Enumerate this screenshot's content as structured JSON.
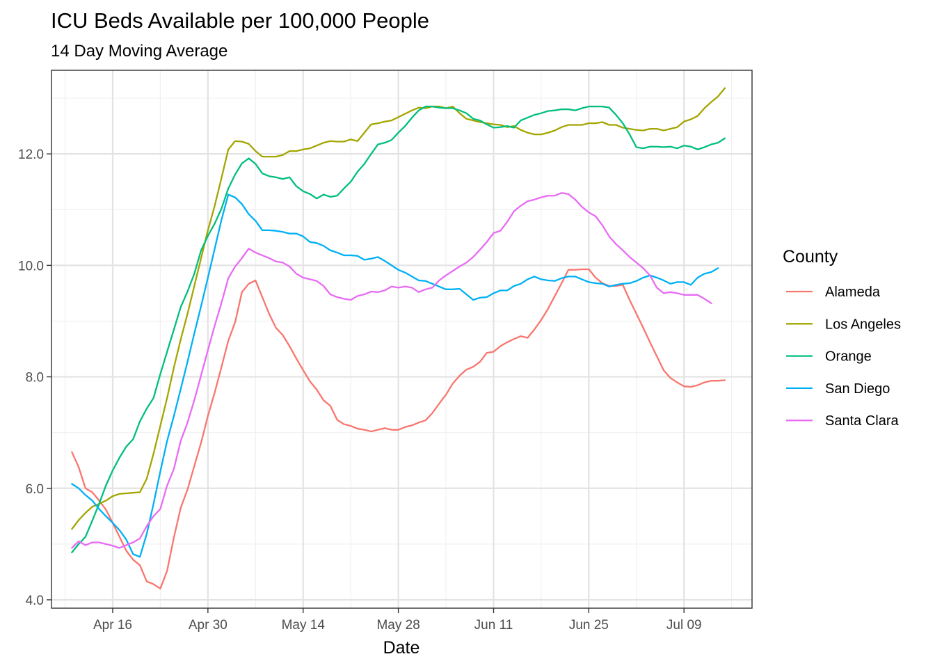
{
  "chart_data": {
    "type": "line",
    "title": "ICU Beds Available per 100,000 People",
    "subtitle": "14 Day Moving Average",
    "xlabel": "Date",
    "ylabel": "",
    "x_start": "2020-04-10",
    "x_step_days": 1,
    "xlim": [
      "2020-04-07",
      "2020-07-19"
    ],
    "x_ticks": [
      {
        "date": "2020-04-16",
        "label": "Apr 16"
      },
      {
        "date": "2020-04-30",
        "label": "Apr 30"
      },
      {
        "date": "2020-05-14",
        "label": "May 14"
      },
      {
        "date": "2020-05-28",
        "label": "May 28"
      },
      {
        "date": "2020-06-11",
        "label": "Jun 11"
      },
      {
        "date": "2020-06-25",
        "label": "Jun 25"
      },
      {
        "date": "2020-07-09",
        "label": "Jul 09"
      }
    ],
    "ylim": [
      3.85,
      13.5
    ],
    "y_ticks": [
      {
        "value": 4,
        "label": "4.0"
      },
      {
        "value": 6,
        "label": "6.0"
      },
      {
        "value": 8,
        "label": "8.0"
      },
      {
        "value": 10,
        "label": "10.0"
      },
      {
        "value": 12,
        "label": "12.0"
      }
    ],
    "grid": true,
    "legend_title": "County",
    "legend_position": "right",
    "series": [
      {
        "name": "Alameda",
        "color": "#F8766D",
        "values": [
          6.65,
          6.38,
          6.0,
          5.93,
          5.78,
          5.62,
          5.38,
          5.13,
          4.88,
          4.72,
          4.62,
          4.33,
          4.28,
          4.2,
          4.52,
          5.12,
          5.65,
          5.98,
          6.4,
          6.82,
          7.3,
          7.72,
          8.18,
          8.65,
          8.98,
          9.52,
          9.67,
          9.73,
          9.43,
          9.13,
          8.88,
          8.75,
          8.55,
          8.33,
          8.12,
          7.92,
          7.77,
          7.58,
          7.48,
          7.23,
          7.15,
          7.12,
          7.07,
          7.05,
          7.02,
          7.05,
          7.08,
          7.05,
          7.05,
          7.1,
          7.13,
          7.18,
          7.22,
          7.35,
          7.52,
          7.68,
          7.88,
          8.02,
          8.13,
          8.18,
          8.27,
          8.43,
          8.45,
          8.55,
          8.62,
          8.68,
          8.73,
          8.7,
          8.85,
          9.02,
          9.22,
          9.45,
          9.68,
          9.92,
          9.92,
          9.93,
          9.93,
          9.78,
          9.68,
          9.63,
          9.63,
          9.65,
          9.38,
          9.13,
          8.88,
          8.62,
          8.37,
          8.12,
          7.98,
          7.9,
          7.83,
          7.82,
          7.85,
          7.9,
          7.93,
          7.93,
          7.94
        ]
      },
      {
        "name": "Los Angeles",
        "color": "#A3A500",
        "values": [
          5.27,
          5.43,
          5.56,
          5.67,
          5.72,
          5.78,
          5.86,
          5.9,
          5.91,
          5.92,
          5.93,
          6.17,
          6.62,
          7.12,
          7.62,
          8.17,
          8.67,
          9.13,
          9.63,
          10.13,
          10.63,
          11.07,
          11.57,
          12.08,
          12.23,
          12.22,
          12.18,
          12.05,
          11.95,
          11.95,
          11.95,
          11.98,
          12.05,
          12.05,
          12.08,
          12.1,
          12.15,
          12.2,
          12.23,
          12.22,
          12.22,
          12.26,
          12.23,
          12.38,
          12.53,
          12.55,
          12.58,
          12.6,
          12.66,
          12.72,
          12.78,
          12.83,
          12.82,
          12.85,
          12.85,
          12.82,
          12.85,
          12.73,
          12.63,
          12.6,
          12.57,
          12.55,
          12.53,
          12.52,
          12.48,
          12.5,
          12.43,
          12.38,
          12.35,
          12.35,
          12.38,
          12.42,
          12.48,
          12.52,
          12.52,
          12.52,
          12.55,
          12.55,
          12.57,
          12.52,
          12.52,
          12.47,
          12.45,
          12.43,
          12.42,
          12.45,
          12.45,
          12.42,
          12.45,
          12.48,
          12.58,
          12.62,
          12.68,
          12.82,
          12.93,
          13.03,
          13.18
        ]
      },
      {
        "name": "Orange",
        "color": "#00BF7D",
        "values": [
          4.85,
          5.0,
          5.13,
          5.42,
          5.72,
          6.05,
          6.32,
          6.55,
          6.75,
          6.88,
          7.2,
          7.43,
          7.62,
          8.05,
          8.45,
          8.85,
          9.25,
          9.53,
          9.85,
          10.27,
          10.53,
          10.75,
          11.02,
          11.38,
          11.63,
          11.83,
          11.92,
          11.82,
          11.65,
          11.6,
          11.58,
          11.55,
          11.58,
          11.42,
          11.33,
          11.28,
          11.2,
          11.27,
          11.23,
          11.25,
          11.38,
          11.5,
          11.68,
          11.82,
          12.0,
          12.17,
          12.2,
          12.25,
          12.38,
          12.5,
          12.65,
          12.78,
          12.85,
          12.85,
          12.83,
          12.82,
          12.82,
          12.78,
          12.73,
          12.63,
          12.6,
          12.53,
          12.47,
          12.48,
          12.5,
          12.47,
          12.6,
          12.65,
          12.7,
          12.73,
          12.77,
          12.78,
          12.8,
          12.8,
          12.78,
          12.82,
          12.85,
          12.85,
          12.85,
          12.83,
          12.7,
          12.55,
          12.35,
          12.12,
          12.1,
          12.13,
          12.13,
          12.12,
          12.13,
          12.1,
          12.15,
          12.13,
          12.08,
          12.12,
          12.17,
          12.2,
          12.28
        ]
      },
      {
        "name": "San Diego",
        "color": "#00B0F6",
        "values": [
          6.08,
          6.0,
          5.88,
          5.78,
          5.63,
          5.5,
          5.38,
          5.25,
          5.08,
          4.82,
          4.77,
          5.18,
          5.72,
          6.3,
          6.85,
          7.3,
          7.78,
          8.27,
          8.78,
          9.27,
          9.78,
          10.3,
          10.82,
          11.27,
          11.22,
          11.1,
          10.92,
          10.8,
          10.63,
          10.63,
          10.62,
          10.6,
          10.57,
          10.57,
          10.52,
          10.42,
          10.4,
          10.35,
          10.27,
          10.23,
          10.18,
          10.18,
          10.17,
          10.1,
          10.12,
          10.15,
          10.08,
          10.0,
          9.92,
          9.87,
          9.8,
          9.73,
          9.72,
          9.67,
          9.62,
          9.57,
          9.57,
          9.58,
          9.48,
          9.38,
          9.42,
          9.43,
          9.5,
          9.55,
          9.55,
          9.63,
          9.67,
          9.75,
          9.8,
          9.75,
          9.73,
          9.72,
          9.77,
          9.8,
          9.8,
          9.75,
          9.7,
          9.68,
          9.67,
          9.62,
          9.65,
          9.67,
          9.68,
          9.72,
          9.78,
          9.82,
          9.78,
          9.73,
          9.67,
          9.7,
          9.7,
          9.65,
          9.78,
          9.85,
          9.88,
          9.95
        ]
      },
      {
        "name": "Santa Clara",
        "color": "#E76BF3",
        "values": [
          4.93,
          5.05,
          4.98,
          5.03,
          5.03,
          5.0,
          4.97,
          4.93,
          4.98,
          5.03,
          5.1,
          5.32,
          5.5,
          5.63,
          6.05,
          6.35,
          6.85,
          7.18,
          7.58,
          8.03,
          8.48,
          8.92,
          9.33,
          9.77,
          9.98,
          10.13,
          10.3,
          10.23,
          10.18,
          10.13,
          10.07,
          10.05,
          9.98,
          9.85,
          9.78,
          9.75,
          9.72,
          9.63,
          9.48,
          9.43,
          9.4,
          9.38,
          9.45,
          9.48,
          9.53,
          9.52,
          9.55,
          9.62,
          9.6,
          9.62,
          9.6,
          9.52,
          9.57,
          9.6,
          9.73,
          9.82,
          9.9,
          9.98,
          10.05,
          10.15,
          10.28,
          10.42,
          10.58,
          10.62,
          10.78,
          10.97,
          11.07,
          11.15,
          11.18,
          11.22,
          11.25,
          11.25,
          11.3,
          11.28,
          11.18,
          11.05,
          10.95,
          10.88,
          10.72,
          10.52,
          10.38,
          10.27,
          10.15,
          10.05,
          9.95,
          9.82,
          9.6,
          9.5,
          9.52,
          9.5,
          9.47,
          9.47,
          9.47,
          9.4,
          9.32
        ]
      }
    ]
  }
}
